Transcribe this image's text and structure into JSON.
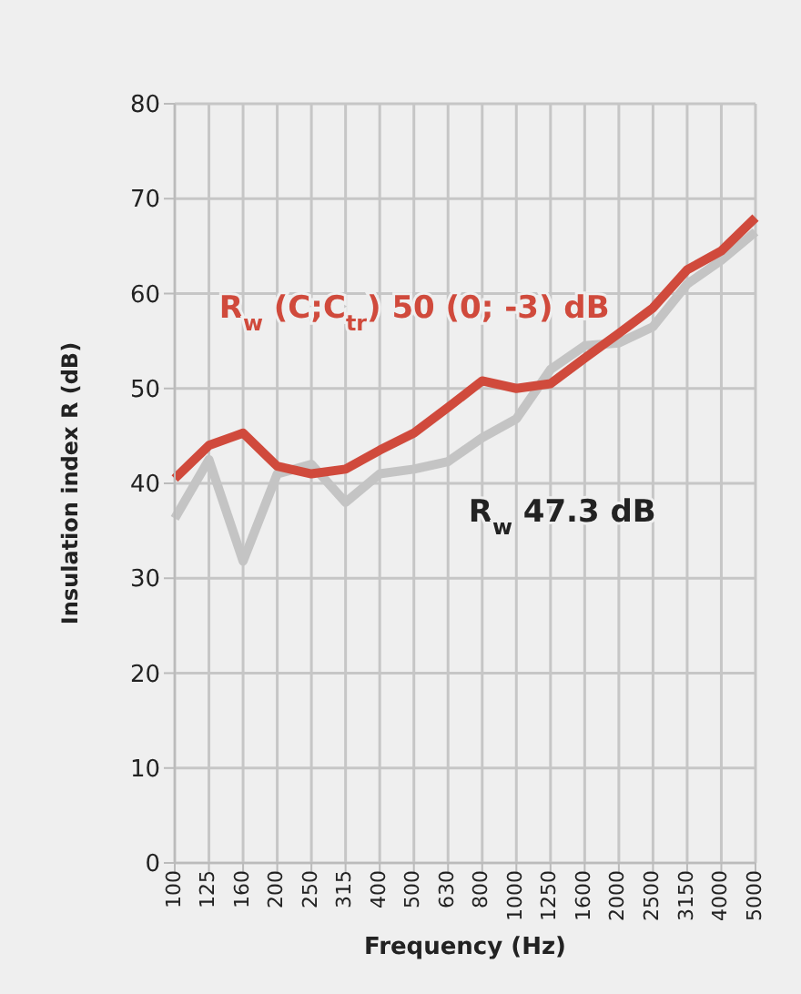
{
  "chart_data": {
    "type": "line",
    "xlabel": "Frequency (Hz)",
    "ylabel": "Insulation index R (dB)",
    "categories": [
      "100",
      "125",
      "160",
      "200",
      "250",
      "315",
      "400",
      "500",
      "630",
      "800",
      "1000",
      "1250",
      "1600",
      "2000",
      "2500",
      "3150",
      "4000",
      "5000"
    ],
    "series": [
      {
        "name": "R$_{w}$ (C;C$_{tr}$) 50 (0; -3) dB",
        "color": "#d04a3c",
        "values": [
          40.5,
          44,
          45.3,
          41.8,
          41,
          41.5,
          43.5,
          45.3,
          48,
          50.8,
          50,
          50.5,
          53.2,
          55.8,
          58.5,
          62.5,
          64.5,
          68
        ]
      },
      {
        "name": "R$_{w}$ 47.3 dB",
        "color": "#c4c4c4",
        "values": [
          36.3,
          42.5,
          31.8,
          41,
          42,
          38,
          41,
          41.5,
          42.3,
          44.8,
          46.8,
          52,
          54.5,
          54.8,
          56.5,
          61,
          63.5,
          66.5
        ]
      }
    ],
    "ylim": [
      0,
      80
    ],
    "yticks": [
      0,
      10,
      20,
      30,
      40,
      50,
      60,
      70,
      80
    ],
    "grid": true,
    "marker": "none",
    "line_style": "solid"
  }
}
